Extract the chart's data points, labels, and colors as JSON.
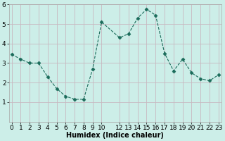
{
  "x": [
    0,
    1,
    2,
    3,
    4,
    5,
    6,
    7,
    8,
    9,
    10,
    12,
    13,
    14,
    15,
    16,
    17,
    18,
    19,
    20,
    21,
    22,
    23
  ],
  "y": [
    3.45,
    3.2,
    3.0,
    3.0,
    2.3,
    1.7,
    1.3,
    1.15,
    1.15,
    2.7,
    5.1,
    4.3,
    4.5,
    5.3,
    5.75,
    5.45,
    3.5,
    2.6,
    3.2,
    2.5,
    2.2,
    2.1,
    2.4
  ],
  "line_color": "#1a6b5a",
  "marker": "D",
  "marker_size": 2.5,
  "bg_color": "#cceee8",
  "grid_color": "#c8b8c0",
  "xlabel": "Humidex (Indice chaleur)",
  "ylim": [
    0,
    6
  ],
  "xlim": [
    -0.3,
    23.3
  ],
  "yticks": [
    1,
    2,
    3,
    4,
    5,
    6
  ],
  "ytick_labels": [
    "1",
    "2",
    "3",
    "4",
    "5",
    "6"
  ],
  "xticks": [
    0,
    1,
    2,
    3,
    4,
    5,
    6,
    7,
    8,
    9,
    10,
    12,
    13,
    14,
    15,
    16,
    17,
    18,
    19,
    20,
    21,
    22,
    23
  ],
  "xlabel_fontsize": 7,
  "tick_fontsize": 6.5
}
